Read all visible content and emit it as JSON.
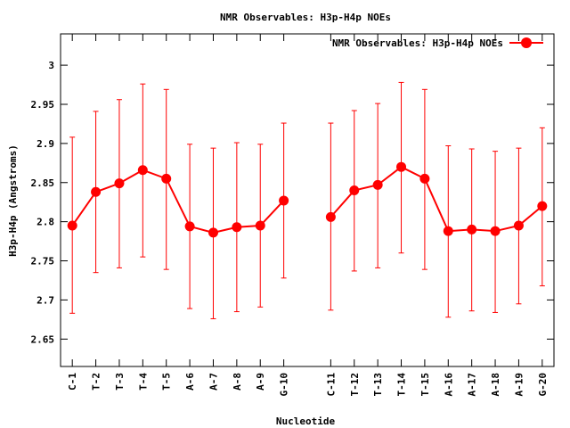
{
  "chart_data": {
    "type": "line",
    "title": "NMR Observables: H3p-H4p NOEs",
    "xlabel": "Nucleotide",
    "ylabel": "H3p-H4p (Angstroms)",
    "ylim": [
      2.615,
      3.04
    ],
    "yticks": [
      2.65,
      2.7,
      2.75,
      2.8,
      2.85,
      2.9,
      2.95,
      3
    ],
    "ytick_labels": [
      "2.65",
      "2.7",
      "2.75",
      "2.8",
      "2.85",
      "2.9",
      "2.95",
      "3"
    ],
    "xlim": [
      0.5,
      21.5
    ],
    "grid": false,
    "legend": "top-right",
    "categories": [
      "C-1",
      "T-2",
      "T-3",
      "T-4",
      "T-5",
      "A-6",
      "A-7",
      "A-8",
      "A-9",
      "G-10",
      "C-11",
      "T-12",
      "T-13",
      "T-14",
      "T-15",
      "A-16",
      "A-17",
      "A-18",
      "A-19",
      "G-20"
    ],
    "x": [
      1,
      2,
      3,
      4,
      5,
      6,
      7,
      8,
      9,
      10,
      12,
      13,
      14,
      15,
      16,
      17,
      18,
      19,
      20,
      21
    ],
    "segments": [
      [
        0,
        9
      ],
      [
        10,
        19
      ]
    ],
    "series": [
      {
        "name": "NMR Observables: H3p-H4p NOEs",
        "color": "#ff0000",
        "values": [
          2.795,
          2.838,
          2.849,
          2.866,
          2.855,
          2.794,
          2.786,
          2.793,
          2.795,
          2.827,
          2.806,
          2.84,
          2.847,
          2.87,
          2.855,
          2.788,
          2.79,
          2.788,
          2.795,
          2.82
        ],
        "err_low": [
          2.683,
          2.735,
          2.741,
          2.755,
          2.739,
          2.689,
          2.676,
          2.685,
          2.691,
          2.728,
          2.687,
          2.737,
          2.741,
          2.76,
          2.739,
          2.678,
          2.686,
          2.684,
          2.695,
          2.718
        ],
        "err_high": [
          2.908,
          2.941,
          2.956,
          2.976,
          2.969,
          2.899,
          2.894,
          2.901,
          2.899,
          2.926,
          2.926,
          2.942,
          2.951,
          2.978,
          2.969,
          2.897,
          2.893,
          2.89,
          2.894,
          2.92
        ]
      }
    ]
  }
}
